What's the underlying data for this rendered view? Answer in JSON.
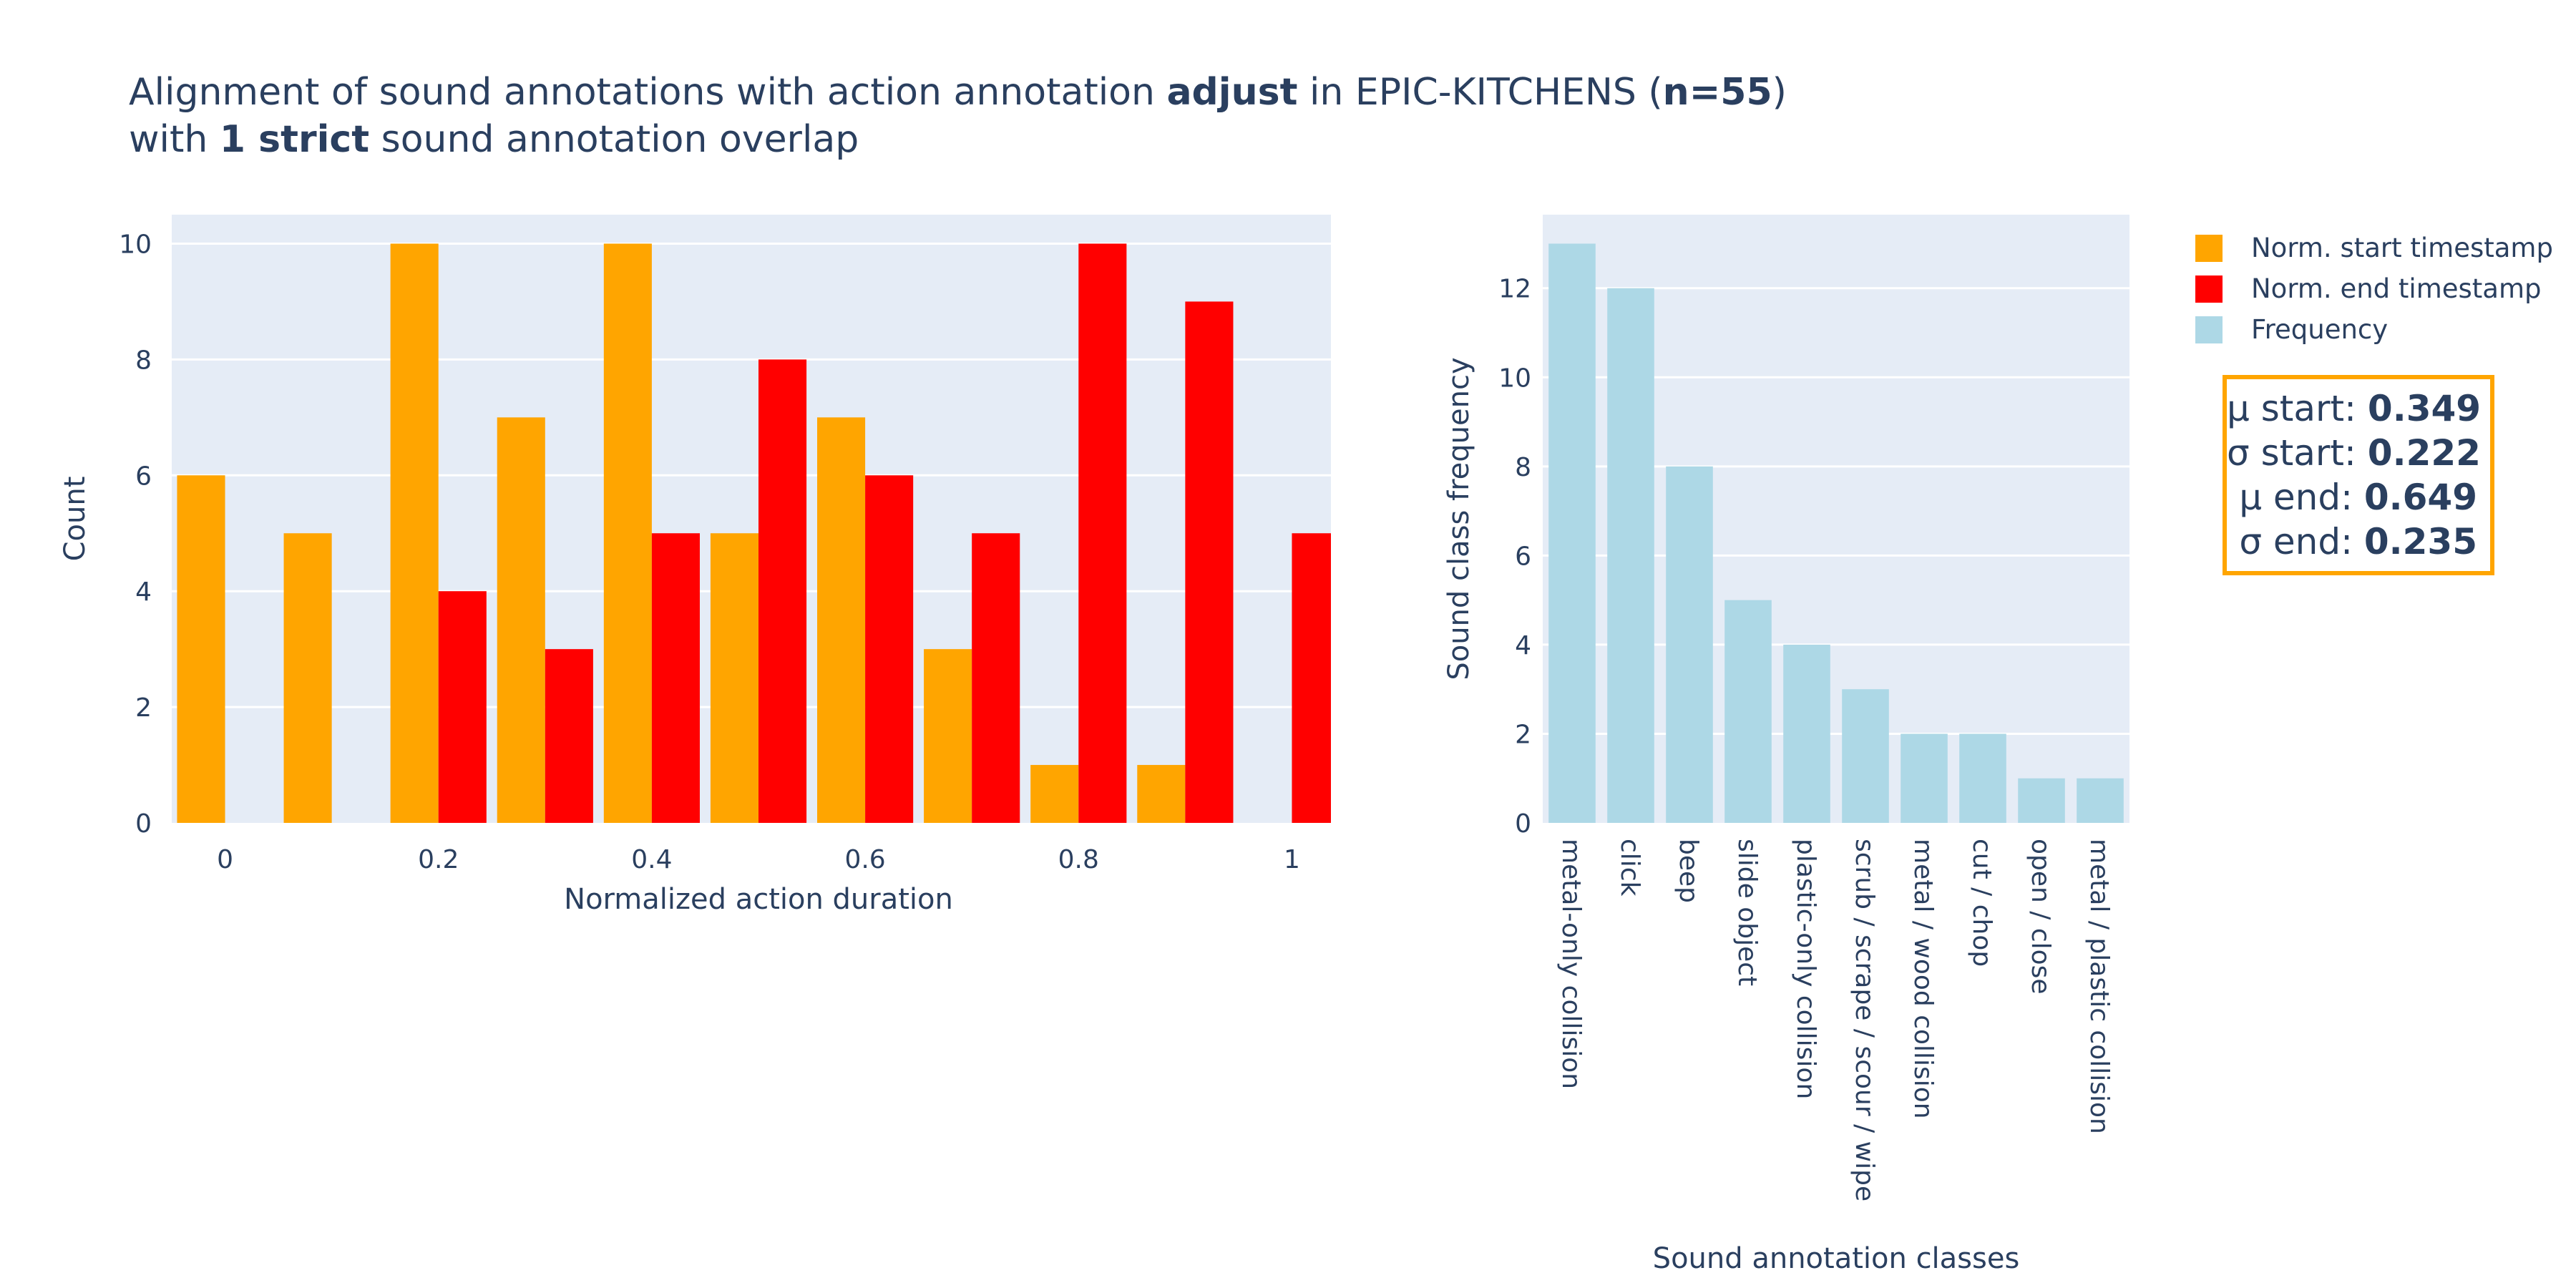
{
  "title": {
    "line1_pre": "Alignment of sound annotations with action annotation ",
    "line1_bold1": "adjust",
    "line1_mid": " in EPIC-KITCHENS (",
    "line1_bold2": "n=55",
    "line1_post": ")",
    "line2_pre": "with ",
    "line2_bold": "1 strict",
    "line2_post": " sound annotation overlap"
  },
  "legend": {
    "items": [
      {
        "label": "Norm. start timestamp",
        "color": "#FFA500"
      },
      {
        "label": "Norm. end timestamp",
        "color": "#FF0000"
      },
      {
        "label": "Frequency",
        "color": "#ADD8E6"
      }
    ]
  },
  "stats": [
    {
      "label": "μ start: ",
      "value": "0.349"
    },
    {
      "label": "σ start: ",
      "value": "0.222"
    },
    {
      "label": "μ end: ",
      "value": "0.649"
    },
    {
      "label": "σ end: ",
      "value": "0.235"
    }
  ],
  "chart_data": [
    {
      "type": "bar",
      "xlabel": "Normalized action duration",
      "ylabel": "Count",
      "bin_centers": [
        0.0,
        0.1,
        0.2,
        0.3,
        0.4,
        0.5,
        0.6,
        0.7,
        0.8,
        0.9,
        1.0
      ],
      "series": [
        {
          "name": "Norm. start timestamp",
          "color": "#FFA500",
          "values": [
            6,
            5,
            10,
            7,
            10,
            5,
            7,
            3,
            1,
            1,
            0
          ]
        },
        {
          "name": "Norm. end timestamp",
          "color": "#FF0000",
          "values": [
            0,
            0,
            4,
            3,
            5,
            8,
            6,
            5,
            10,
            9,
            5
          ]
        }
      ],
      "xlim": [
        -0.05,
        1.05
      ],
      "ylim": [
        0,
        10.5
      ],
      "xticks": [
        0,
        0.2,
        0.4,
        0.6,
        0.8,
        1
      ],
      "xtick_labels": [
        "0",
        "0.2",
        "0.4",
        "0.6",
        "0.8",
        "1"
      ],
      "yticks": [
        0,
        2,
        4,
        6,
        8,
        10
      ],
      "grid": true
    },
    {
      "type": "bar",
      "xlabel": "Sound annotation classes",
      "ylabel": "Sound class frequency",
      "categories": [
        "metal-only collision",
        "click",
        "beep",
        "slide object",
        "plastic-only collision",
        "scrub / scrape / scour / wipe",
        "metal / wood collision",
        "cut / chop",
        "open / close",
        "metal / plastic collision"
      ],
      "series": [
        {
          "name": "Frequency",
          "color": "#ADD8E6",
          "values": [
            13,
            12,
            8,
            5,
            4,
            3,
            2,
            2,
            1,
            1
          ]
        }
      ],
      "ylim": [
        0,
        13.65
      ],
      "yticks": [
        0,
        2,
        4,
        6,
        8,
        10,
        12
      ],
      "grid": true
    }
  ]
}
